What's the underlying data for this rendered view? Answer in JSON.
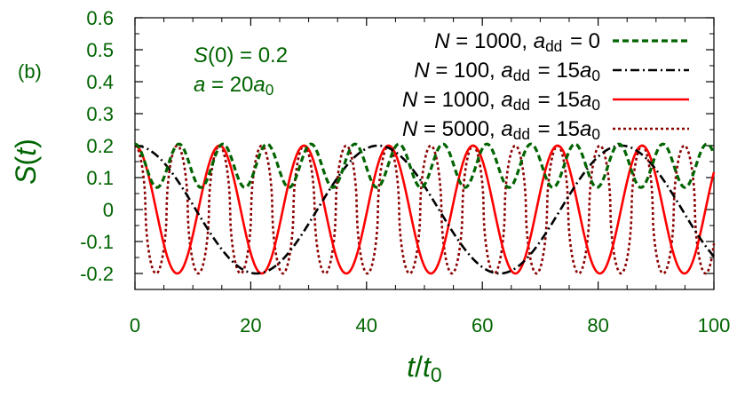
{
  "chart_data": {
    "type": "line",
    "panel_label": "(b)",
    "xlabel": "t/t₀",
    "ylabel": "S(t)",
    "xlim": [
      0,
      100
    ],
    "ylim": [
      -0.25,
      0.6
    ],
    "x_ticks": [
      0,
      20,
      40,
      60,
      80,
      100
    ],
    "y_ticks": [
      -0.2,
      -0.1,
      0,
      0.1,
      0.2,
      0.3,
      0.4,
      0.5,
      0.6
    ],
    "x_tick_labels": [
      "0",
      "20",
      "40",
      "60",
      "80",
      "100"
    ],
    "y_tick_labels": [
      "-0.2",
      "-0.1",
      "0",
      "0.1",
      "0.2",
      "0.3",
      "0.4",
      "0.5",
      "0.6"
    ],
    "grid": false,
    "legend_placement": "top-right",
    "annotations": [
      "S(0) = 0.2",
      "a = 20a₀"
    ],
    "colors": {
      "axis_text": "#006400",
      "frame": "#000000"
    },
    "series": [
      {
        "name": "N = 1000, a_dd = 0",
        "color": "#006400",
        "dash": "dashed",
        "model": {
          "form": "two-level",
          "period": 7.6,
          "mean": 0.137,
          "amplitude": 0.068
        },
        "approx_extrema": {
          "max": 0.21,
          "min": 0.065
        }
      },
      {
        "name": "N = 100, a_dd = 15a₀",
        "color": "#000000",
        "dash": "dash-dot",
        "model": {
          "form": "cosine",
          "period": 42.0,
          "mean": 0.0,
          "amplitude": 0.2
        },
        "approx_extrema": {
          "max": 0.2,
          "min": -0.2
        }
      },
      {
        "name": "N = 1000, a_dd = 15a₀",
        "color": "#ff0000",
        "dash": "solid",
        "model": {
          "form": "cosine",
          "period": 14.6,
          "mean": 0.0,
          "amplitude": 0.2
        },
        "approx_extrema": {
          "max": 0.2,
          "min": -0.2
        }
      },
      {
        "name": "N = 5000, a_dd = 15a₀",
        "color": "#8b0000",
        "dash": "dotted",
        "model": {
          "form": "sharp-cosine",
          "period": 7.3,
          "mean": 0.0,
          "amplitude": 0.2
        },
        "approx_extrema": {
          "max": 0.2,
          "min": -0.2
        }
      }
    ]
  }
}
